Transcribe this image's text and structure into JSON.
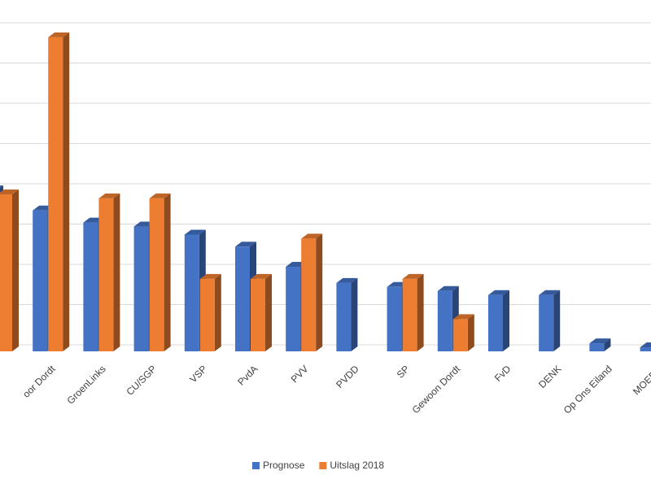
{
  "chart_data": {
    "type": "bar3d",
    "categories": [
      null,
      "oor Dordt",
      "GroenLinks",
      "CU/SGP",
      "VSP",
      "PvdA",
      "PVV",
      "PVDD",
      "SP",
      "Gewoon Dordt",
      "FvD",
      "DENK",
      "Op Ons Eiland",
      "MOEDO"
    ],
    "series": [
      {
        "name": "Prognose",
        "color": "#4472c4",
        "values": [
          4.0,
          3.5,
          3.2,
          3.1,
          2.9,
          2.6,
          2.1,
          1.7,
          1.6,
          1.5,
          1.4,
          1.4,
          0.2,
          0.1
        ]
      },
      {
        "name": "Uitslag 2018",
        "color": "#ed7d31",
        "values": [
          3.9,
          7.8,
          3.8,
          3.8,
          1.8,
          1.8,
          2.8,
          null,
          1.8,
          0.8,
          null,
          null,
          null,
          null
        ]
      }
    ],
    "ylim": [
      0,
      8
    ],
    "yticks": [
      0,
      1,
      2,
      3,
      4,
      5,
      6,
      7,
      8
    ],
    "grid": true,
    "legend": "bottom"
  }
}
